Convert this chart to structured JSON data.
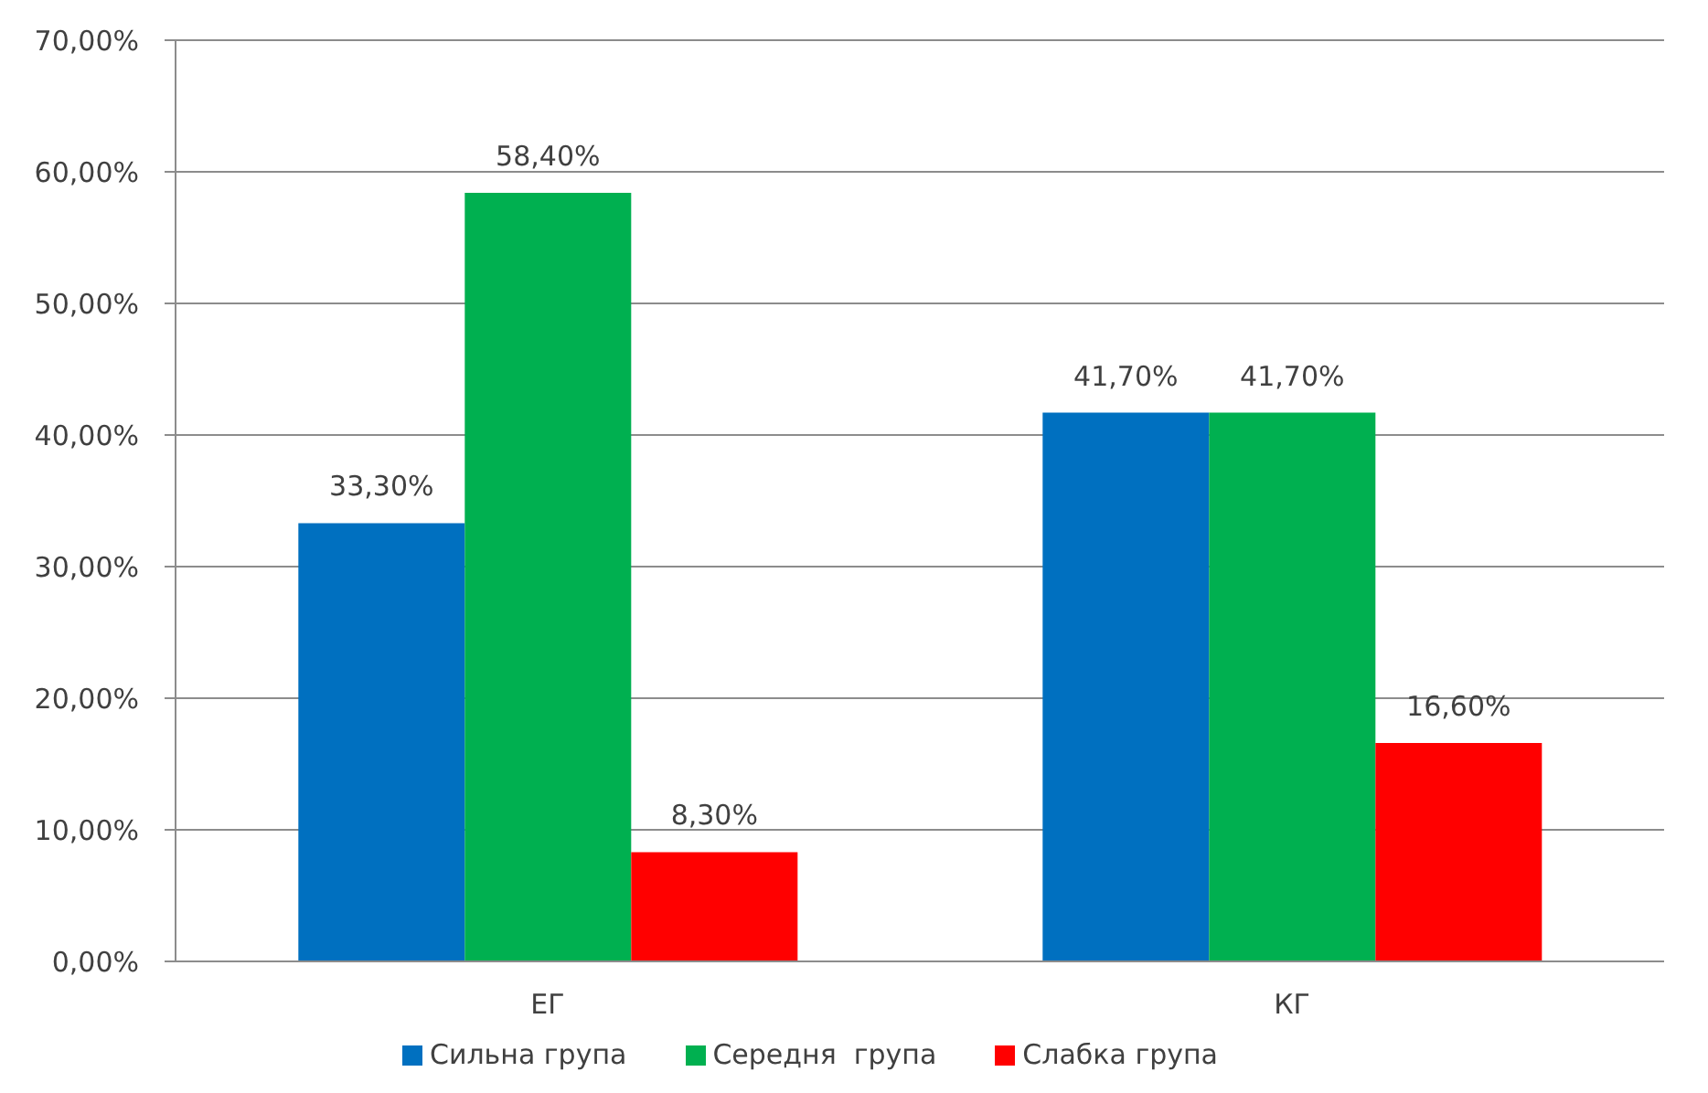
{
  "chart_data": {
    "type": "bar",
    "categories": [
      "ЕГ",
      "КГ"
    ],
    "series": [
      {
        "name": "Сильна група",
        "color": "#0070c0",
        "values": [
          33.3,
          41.7
        ],
        "value_labels": [
          "33,30%",
          "41,70%"
        ]
      },
      {
        "name": "Середня  група",
        "color": "#00b050",
        "values": [
          58.4,
          41.7
        ],
        "value_labels": [
          "58,40%",
          "41,70%"
        ]
      },
      {
        "name": "Слабка група",
        "color": "#ff0000",
        "values": [
          8.3,
          16.6
        ],
        "value_labels": [
          "8,30%",
          "16,60%"
        ]
      }
    ],
    "ylim": [
      0,
      70
    ],
    "yticks": [
      {
        "value": 0,
        "label": "0,00%"
      },
      {
        "value": 10,
        "label": "10,00%"
      },
      {
        "value": 20,
        "label": "20,00%"
      },
      {
        "value": 30,
        "label": "30,00%"
      },
      {
        "value": 40,
        "label": "40,00%"
      },
      {
        "value": 50,
        "label": "50,00%"
      },
      {
        "value": 60,
        "label": "60,00%"
      },
      {
        "value": 70,
        "label": "70,00%"
      }
    ],
    "grid": "y",
    "legend": "bottom"
  }
}
